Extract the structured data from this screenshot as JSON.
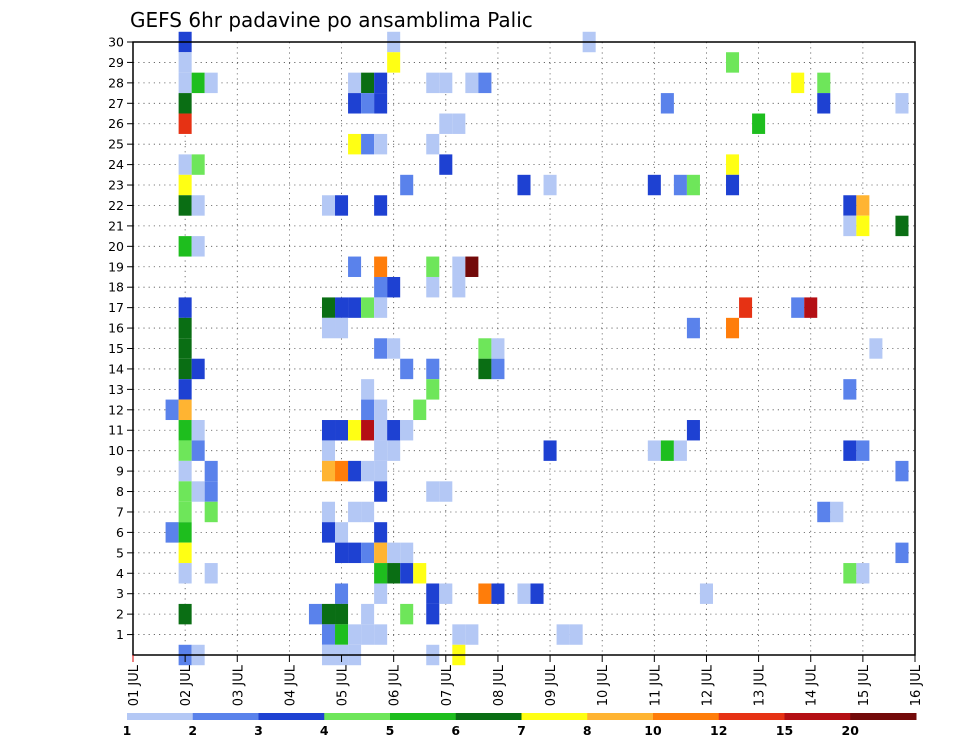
{
  "chart_data": {
    "type": "heatmap",
    "title": "GEFS 6hr padavine po ansamblima Palic",
    "xlabel": "",
    "ylabel": "",
    "grid": true,
    "x_start_day": 1,
    "x_steps_per_day": 4,
    "x_tick_labels": [
      "01 JUL",
      "02 JUL",
      "03 JUL",
      "04 JUL",
      "05 JUL",
      "06 JUL",
      "07 JUL",
      "08 JUL",
      "09 JUL",
      "10 JUL",
      "11 JUL",
      "12 JUL",
      "13 JUL",
      "14 JUL",
      "15 JUL",
      "16 JUL"
    ],
    "y_tick_labels": [
      "1",
      "2",
      "3",
      "4",
      "5",
      "6",
      "7",
      "8",
      "9",
      "10",
      "11",
      "12",
      "13",
      "14",
      "15",
      "16",
      "17",
      "18",
      "19",
      "20",
      "21",
      "22",
      "23",
      "24",
      "25",
      "26",
      "27",
      "28",
      "29",
      "30"
    ],
    "ylim": [
      0,
      30
    ],
    "legend": {
      "placement": "bottom",
      "thresholds": [
        "1",
        "2",
        "3",
        "4",
        "5",
        "6",
        "7",
        "8",
        "10",
        "12",
        "15",
        "20"
      ],
      "colors": [
        "#b4c8f5",
        "#5a82eb",
        "#1e41d2",
        "#6ee65a",
        "#1ebe1e",
        "#0a6e14",
        "#ffff14",
        "#ffb432",
        "#ff7d0a",
        "#e63214",
        "#b40f14",
        "#730a0a"
      ]
    },
    "cells": [
      [
        2.0,
        30,
        2
      ],
      [
        2.0,
        29,
        0
      ],
      [
        2.0,
        28,
        0
      ],
      [
        2.25,
        28,
        4
      ],
      [
        2.5,
        28,
        0
      ],
      [
        2.0,
        27,
        5
      ],
      [
        2.0,
        26,
        9
      ],
      [
        2.0,
        24,
        0
      ],
      [
        2.25,
        24,
        3
      ],
      [
        2.0,
        23,
        6
      ],
      [
        2.0,
        22,
        5
      ],
      [
        2.25,
        22,
        0
      ],
      [
        2.0,
        20,
        4
      ],
      [
        2.25,
        20,
        0
      ],
      [
        2.0,
        17,
        2
      ],
      [
        2.0,
        16,
        5
      ],
      [
        2.0,
        15,
        5
      ],
      [
        2.0,
        14,
        5
      ],
      [
        2.25,
        14,
        2
      ],
      [
        2.0,
        13,
        2
      ],
      [
        1.75,
        12,
        1
      ],
      [
        2.0,
        12,
        7
      ],
      [
        2.0,
        11,
        4
      ],
      [
        2.25,
        11,
        0
      ],
      [
        2.0,
        10,
        3
      ],
      [
        2.25,
        10,
        1
      ],
      [
        2.0,
        9,
        0
      ],
      [
        2.5,
        9,
        1
      ],
      [
        2.0,
        8,
        3
      ],
      [
        2.25,
        8,
        0
      ],
      [
        2.5,
        8,
        1
      ],
      [
        2.0,
        7,
        3
      ],
      [
        2.5,
        7,
        3
      ],
      [
        1.75,
        6,
        1
      ],
      [
        2.0,
        6,
        4
      ],
      [
        2.0,
        5,
        6
      ],
      [
        2.0,
        4,
        0
      ],
      [
        2.5,
        4,
        0
      ],
      [
        2.0,
        2,
        5
      ],
      [
        2.0,
        0,
        1
      ],
      [
        2.25,
        0,
        0
      ],
      [
        6.0,
        30,
        0
      ],
      [
        6.0,
        29,
        6
      ],
      [
        5.25,
        28,
        0
      ],
      [
        5.5,
        28,
        5
      ],
      [
        5.75,
        28,
        2
      ],
      [
        5.25,
        27,
        2
      ],
      [
        5.5,
        27,
        1
      ],
      [
        5.75,
        27,
        2
      ],
      [
        5.25,
        25,
        6
      ],
      [
        5.5,
        25,
        1
      ],
      [
        5.75,
        25,
        0
      ],
      [
        4.75,
        22,
        0
      ],
      [
        5.0,
        22,
        2
      ],
      [
        5.75,
        22,
        2
      ],
      [
        5.25,
        19,
        1
      ],
      [
        5.75,
        19,
        8
      ],
      [
        5.75,
        18,
        1
      ],
      [
        6.0,
        18,
        2
      ],
      [
        4.75,
        17,
        5
      ],
      [
        5.0,
        17,
        2
      ],
      [
        5.25,
        17,
        2
      ],
      [
        5.5,
        17,
        3
      ],
      [
        5.75,
        17,
        0
      ],
      [
        4.75,
        16,
        0
      ],
      [
        5.0,
        16,
        0
      ],
      [
        5.75,
        15,
        1
      ],
      [
        6.0,
        15,
        0
      ],
      [
        5.5,
        13,
        0
      ],
      [
        5.5,
        12,
        1
      ],
      [
        5.75,
        12,
        0
      ],
      [
        4.75,
        11,
        2
      ],
      [
        5.0,
        11,
        2
      ],
      [
        5.25,
        11,
        6
      ],
      [
        5.5,
        11,
        10
      ],
      [
        5.75,
        11,
        0
      ],
      [
        6.0,
        11,
        2
      ],
      [
        6.25,
        11,
        0
      ],
      [
        4.75,
        10,
        0
      ],
      [
        5.75,
        10,
        0
      ],
      [
        6.0,
        10,
        0
      ],
      [
        4.75,
        9,
        7
      ],
      [
        5.0,
        9,
        8
      ],
      [
        5.25,
        9,
        2
      ],
      [
        5.5,
        9,
        0
      ],
      [
        5.75,
        9,
        0
      ],
      [
        5.75,
        8,
        2
      ],
      [
        4.75,
        7,
        0
      ],
      [
        5.25,
        7,
        0
      ],
      [
        5.5,
        7,
        0
      ],
      [
        4.75,
        6,
        2
      ],
      [
        5.0,
        6,
        0
      ],
      [
        5.75,
        6,
        2
      ],
      [
        5.0,
        5,
        2
      ],
      [
        5.25,
        5,
        2
      ],
      [
        5.5,
        5,
        1
      ],
      [
        5.75,
        5,
        7
      ],
      [
        6.0,
        5,
        0
      ],
      [
        6.25,
        5,
        0
      ],
      [
        5.75,
        4,
        4
      ],
      [
        6.0,
        4,
        5
      ],
      [
        6.25,
        4,
        2
      ],
      [
        6.5,
        4,
        6
      ],
      [
        5.0,
        3,
        1
      ],
      [
        5.75,
        3,
        0
      ],
      [
        4.5,
        2,
        1
      ],
      [
        4.75,
        2,
        5
      ],
      [
        5.0,
        2,
        5
      ],
      [
        5.5,
        2,
        0
      ],
      [
        6.25,
        2,
        3
      ],
      [
        4.75,
        1,
        1
      ],
      [
        5.0,
        1,
        4
      ],
      [
        5.25,
        1,
        0
      ],
      [
        5.5,
        1,
        0
      ],
      [
        5.75,
        1,
        0
      ],
      [
        4.75,
        0,
        0
      ],
      [
        5.0,
        0,
        0
      ],
      [
        5.25,
        0,
        0
      ],
      [
        6.75,
        28,
        0
      ],
      [
        7.0,
        28,
        0
      ],
      [
        7.5,
        28,
        0
      ],
      [
        7.75,
        28,
        1
      ],
      [
        7.0,
        26,
        0
      ],
      [
        7.25,
        26,
        0
      ],
      [
        6.75,
        25,
        0
      ],
      [
        7.0,
        24,
        2
      ],
      [
        6.25,
        23,
        1
      ],
      [
        6.75,
        19,
        3
      ],
      [
        7.25,
        19,
        0
      ],
      [
        7.5,
        19,
        11
      ],
      [
        6.75,
        18,
        0
      ],
      [
        7.25,
        18,
        0
      ],
      [
        7.75,
        15,
        3
      ],
      [
        8.0,
        15,
        0
      ],
      [
        6.25,
        14,
        1
      ],
      [
        6.75,
        14,
        1
      ],
      [
        7.75,
        14,
        5
      ],
      [
        8.0,
        14,
        1
      ],
      [
        6.75,
        13,
        3
      ],
      [
        6.5,
        12,
        3
      ],
      [
        6.75,
        8,
        0
      ],
      [
        7.0,
        8,
        0
      ],
      [
        6.75,
        3,
        2
      ],
      [
        7.0,
        3,
        0
      ],
      [
        7.75,
        3,
        8
      ],
      [
        8.0,
        3,
        2
      ],
      [
        6.75,
        2,
        2
      ],
      [
        7.25,
        1,
        0
      ],
      [
        7.5,
        1,
        0
      ],
      [
        6.75,
        0,
        0
      ],
      [
        7.25,
        0,
        6
      ],
      [
        9.75,
        30,
        0
      ],
      [
        8.5,
        23,
        2
      ],
      [
        9.0,
        23,
        0
      ],
      [
        9.0,
        10,
        2
      ],
      [
        8.5,
        3,
        0
      ],
      [
        8.75,
        3,
        2
      ],
      [
        9.25,
        1,
        0
      ],
      [
        9.5,
        1,
        0
      ],
      [
        12.5,
        29,
        3
      ],
      [
        13.75,
        28,
        6
      ],
      [
        14.25,
        28,
        3
      ],
      [
        11.25,
        27,
        1
      ],
      [
        14.25,
        27,
        2
      ],
      [
        15.75,
        27,
        0
      ],
      [
        13.0,
        26,
        4
      ],
      [
        12.5,
        24,
        6
      ],
      [
        11.0,
        23,
        2
      ],
      [
        11.5,
        23,
        1
      ],
      [
        11.75,
        23,
        3
      ],
      [
        12.5,
        23,
        2
      ],
      [
        14.75,
        22,
        2
      ],
      [
        15.0,
        22,
        7
      ],
      [
        14.75,
        21,
        0
      ],
      [
        15.0,
        21,
        6
      ],
      [
        15.75,
        21,
        5
      ],
      [
        12.75,
        17,
        9
      ],
      [
        13.75,
        17,
        1
      ],
      [
        14.0,
        17,
        10
      ],
      [
        11.75,
        16,
        1
      ],
      [
        12.5,
        16,
        8
      ],
      [
        15.25,
        15,
        0
      ],
      [
        14.75,
        13,
        1
      ],
      [
        11.75,
        11,
        2
      ],
      [
        11.0,
        10,
        0
      ],
      [
        11.25,
        10,
        4
      ],
      [
        11.5,
        10,
        0
      ],
      [
        14.75,
        10,
        2
      ],
      [
        15.0,
        10,
        1
      ],
      [
        15.75,
        9,
        1
      ],
      [
        14.25,
        7,
        1
      ],
      [
        14.5,
        7,
        0
      ],
      [
        15.75,
        5,
        1
      ],
      [
        14.75,
        4,
        3
      ],
      [
        15.0,
        4,
        0
      ],
      [
        12.0,
        3,
        0
      ]
    ]
  }
}
